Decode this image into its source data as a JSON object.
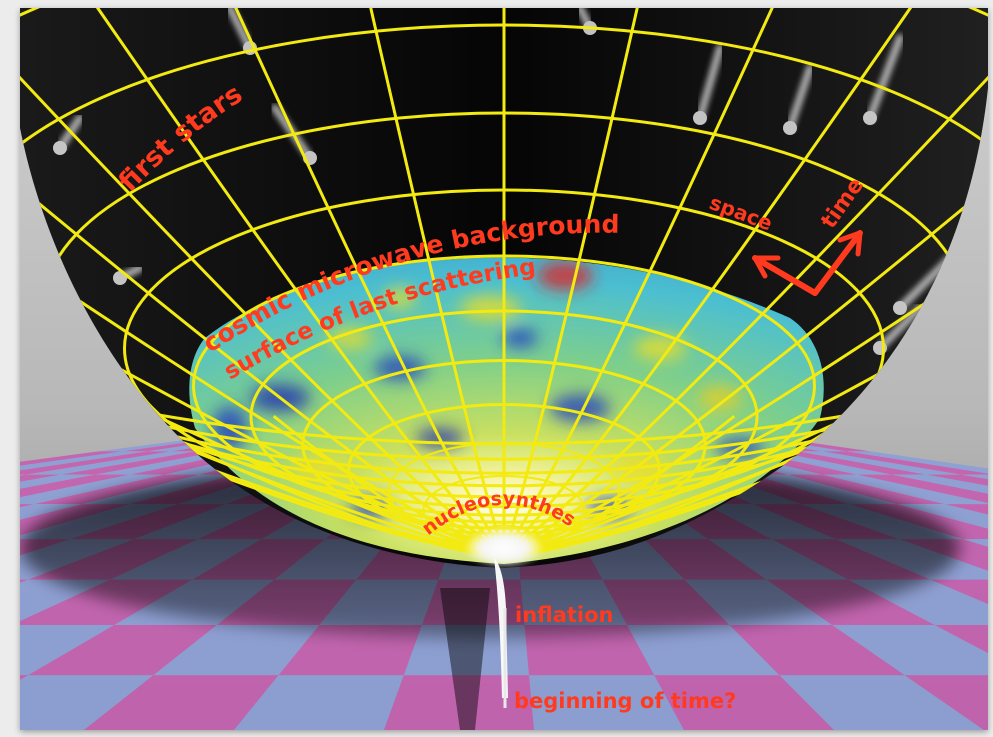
{
  "labels": {
    "first_stars": "first stars",
    "cmb": "cosmic microwave background",
    "last_scattering": "surface of last scattering",
    "space": "space",
    "time": "time",
    "nucleosynthesis": "nucleosynthesis",
    "inflation": "inflation",
    "beginning": "beginning of time?"
  },
  "colors": {
    "grid": "#f2ea10",
    "label": "#ff3a1e",
    "floor_pink": "#c45fb0",
    "floor_blue": "#8c9ed6",
    "sky_top": "#c8c8c8",
    "sky_bottom": "#9a9a9a"
  }
}
